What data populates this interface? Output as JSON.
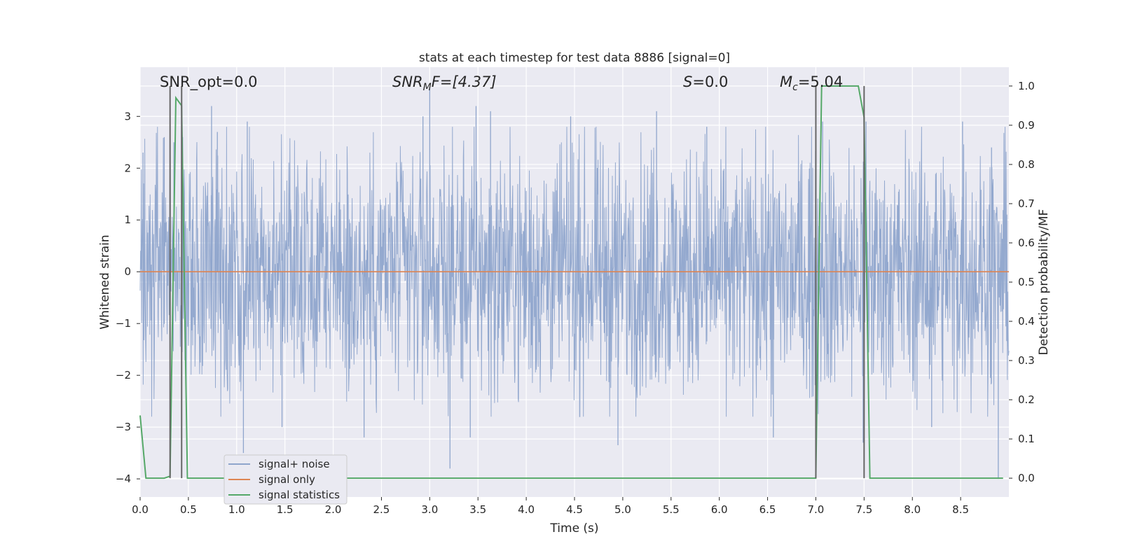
{
  "chart_data": {
    "type": "line",
    "title": "stats at each timestep for test data 8886 [signal=0]",
    "xlabel": "Time (s)",
    "ylabel": "Whitened strain",
    "y2label": "Detection probability/MF",
    "xlim": [
      0.0,
      9.0
    ],
    "ylim": [
      -4.35,
      3.95
    ],
    "y2lim": [
      -0.048,
      1.048
    ],
    "xticks": [
      0.0,
      0.5,
      1.0,
      1.5,
      2.0,
      2.5,
      3.0,
      3.5,
      4.0,
      4.5,
      5.0,
      5.5,
      6.0,
      6.5,
      7.0,
      7.5,
      8.0,
      8.5
    ],
    "xtick_labels": [
      "0.0",
      "0.5",
      "1.0",
      "1.5",
      "2.0",
      "2.5",
      "3.0",
      "3.5",
      "4.0",
      "4.5",
      "5.0",
      "5.5",
      "6.0",
      "6.5",
      "7.0",
      "7.5",
      "8.0",
      "8.5"
    ],
    "yticks": [
      -4,
      -3,
      -2,
      -1,
      0,
      1,
      2,
      3
    ],
    "ytick_labels": [
      "−4",
      "−3",
      "−2",
      "−1",
      "0",
      "1",
      "2",
      "3"
    ],
    "y2ticks": [
      0.0,
      0.1,
      0.2,
      0.3,
      0.4,
      0.5,
      0.6,
      0.7,
      0.8,
      0.9,
      1.0
    ],
    "y2tick_labels": [
      "0.0",
      "0.1",
      "0.2",
      "0.3",
      "0.4",
      "0.5",
      "0.6",
      "0.7",
      "0.8",
      "0.9",
      "1.0"
    ],
    "grid": true,
    "legend_position": "lower-left",
    "annotations": {
      "snr_opt": "SNR_opt=0.0",
      "snr_mf_base": "SNR",
      "snr_mf_sub": "M",
      "snr_mf_rest": "F=[4.37]",
      "s_italic": "S",
      "s_rest": "=0.0",
      "mc_base": "M",
      "mc_sub": "c",
      "mc_rest": "=5.04"
    },
    "series": [
      {
        "name": "signal+ noise",
        "axis": "left",
        "color": "#8fa5cc",
        "style": "noise",
        "dt": 0.004,
        "envelope": 1.3,
        "spikes": [
          [
            0.03,
            2.3
          ],
          [
            0.25,
            2.6
          ],
          [
            0.35,
            2.5
          ],
          [
            0.44,
            2.6
          ],
          [
            0.74,
            3.2
          ],
          [
            0.8,
            2.7
          ],
          [
            1.07,
            -3.5
          ],
          [
            1.11,
            2.9
          ],
          [
            1.47,
            -3.0
          ],
          [
            2.32,
            -3.2
          ],
          [
            2.93,
            3.0
          ],
          [
            3.0,
            3.55
          ],
          [
            3.21,
            -3.8
          ],
          [
            3.42,
            -3.2
          ],
          [
            3.48,
            3.2
          ],
          [
            3.63,
            3.1
          ],
          [
            4.46,
            3.0
          ],
          [
            4.95,
            -3.35
          ],
          [
            5.35,
            3.1
          ],
          [
            5.87,
            2.8
          ],
          [
            6.56,
            -3.2
          ],
          [
            7.0,
            3.05
          ],
          [
            7.07,
            2.9
          ],
          [
            7.49,
            -3.3
          ],
          [
            7.52,
            2.9
          ],
          [
            8.2,
            -3.0
          ],
          [
            8.52,
            2.9
          ],
          [
            8.82,
            2.4
          ],
          [
            8.89,
            -4.0
          ]
        ]
      },
      {
        "name": "signal only",
        "axis": "left",
        "color": "#dd8452",
        "x": [
          0.0,
          9.0
        ],
        "y": [
          0.0,
          0.0
        ]
      },
      {
        "name": "signal statistics",
        "axis": "right",
        "color": "#55a868",
        "x": [
          0.0,
          0.06,
          0.1,
          0.25,
          0.31,
          0.37,
          0.43,
          0.49,
          0.6,
          7.0,
          7.06,
          7.44,
          7.5,
          7.56,
          8.94
        ],
        "y": [
          0.16,
          0.0,
          0.0,
          0.0,
          0.005,
          0.97,
          0.95,
          0.0,
          0.0,
          0.0,
          1.0,
          1.0,
          0.92,
          0.0,
          0.0
        ]
      }
    ],
    "vlines": [
      {
        "x": 0.31,
        "ymin": 0.0,
        "ymax": 1.0
      },
      {
        "x": 0.43,
        "ymin": 0.0,
        "ymax": 1.0
      },
      {
        "x": 7.0,
        "ymin": 0.0,
        "ymax": 1.0
      },
      {
        "x": 7.5,
        "ymin": 0.0,
        "ymax": 1.0
      }
    ]
  }
}
